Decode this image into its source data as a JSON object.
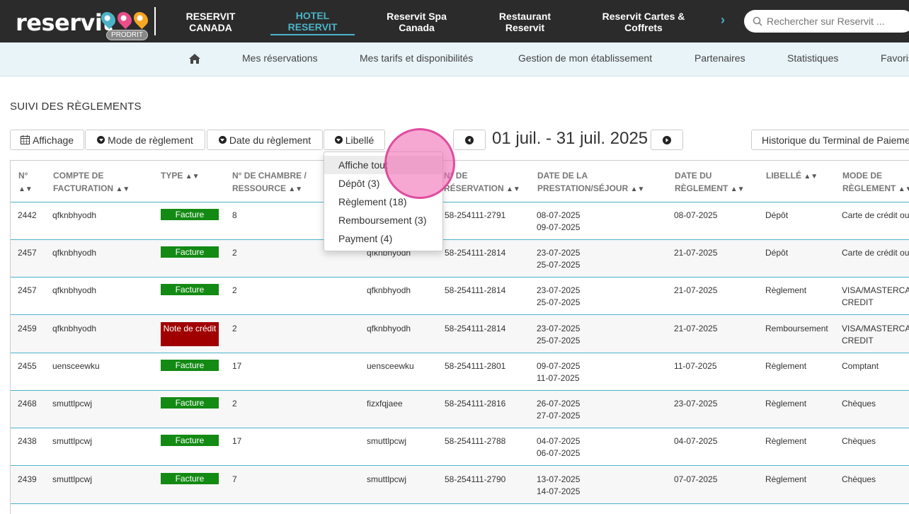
{
  "brand": {
    "logo_text": "reservit",
    "badge": "PRODRIT",
    "pin_colors": [
      "#4bb3c9",
      "#e94d8a",
      "#f5a623"
    ]
  },
  "topnav": {
    "items": [
      {
        "label": "RESERVIT CANADA"
      },
      {
        "label": "HOTEL RESERVIT"
      },
      {
        "label": "Reservit Spa Canada"
      },
      {
        "label": "Restaurant Reservit"
      },
      {
        "label": "Reservit Cartes & Coffrets"
      }
    ],
    "more_arrow": "›",
    "search_placeholder": "Rechercher sur Reservit ..."
  },
  "subnav": {
    "items": [
      {
        "label": "Mes réservations"
      },
      {
        "label": "Mes tarifs et disponibilités"
      },
      {
        "label": "Gestion de mon établissement"
      },
      {
        "label": "Partenaires"
      },
      {
        "label": "Statistiques"
      },
      {
        "label": "Favoris"
      }
    ]
  },
  "page": {
    "title": "SUIVI DES RÈGLEMENTS",
    "toolbar": {
      "display": "Affichage",
      "payment_mode": "Mode de règlement",
      "payment_date": "Date du règlement",
      "label": "Libellé",
      "date_range": "01 juil. - 31 juil. 2025",
      "history": "Historique du Terminal de Paiement"
    }
  },
  "dropdown": {
    "items": [
      "Affiche tout",
      "Dépôt (3)",
      "Règlement (18)",
      "Remboursement (3)",
      "Payment (4)"
    ]
  },
  "table": {
    "headers": {
      "num": "N°",
      "account": "COMPTE DE FACTURATION",
      "type": "TYPE",
      "room": "N° DE CHAMBRE / RESSOURCE",
      "resa": "N° DE RÉSERVATION",
      "prest": "DATE DE LA PRESTATION/SÉJOUR",
      "pay_date": "DATE DU RÈGLEMENT",
      "label": "LIBELLÉ",
      "mode": "MODE DE RÈGLEMENT"
    },
    "rows": [
      {
        "num": "2442",
        "account": "qfknbhyodh",
        "type": "Facture",
        "room": "8",
        "client": "",
        "resa": "58-254111-2791",
        "d1": "08-07-2025",
        "d2": "09-07-2025",
        "pay": "08-07-2025",
        "label": "Dépôt",
        "mode": "Carte de crédit ou",
        "mode2": ""
      },
      {
        "num": "2457",
        "account": "qfknbhyodh",
        "type": "Facture",
        "room": "2",
        "client": "qfknbhyodh",
        "resa": "58-254111-2814",
        "d1": "23-07-2025",
        "d2": "25-07-2025",
        "pay": "21-07-2025",
        "label": "Dépôt",
        "mode": "Carte de crédit ou",
        "mode2": ""
      },
      {
        "num": "2457",
        "account": "qfknbhyodh",
        "type": "Facture",
        "room": "2",
        "client": "qfknbhyodh",
        "resa": "58-254111-2814",
        "d1": "23-07-2025",
        "d2": "25-07-2025",
        "pay": "21-07-2025",
        "label": "Règlement",
        "mode": "VISA/MASTERCARD",
        "mode2": "CREDIT"
      },
      {
        "num": "2459",
        "account": "qfknbhyodh",
        "type": "Note de crédit",
        "room": "2",
        "client": "qfknbhyodh",
        "resa": "58-254111-2814",
        "d1": "23-07-2025",
        "d2": "25-07-2025",
        "pay": "21-07-2025",
        "label": "Remboursement",
        "mode": "VISA/MASTERCARD",
        "mode2": "CREDIT"
      },
      {
        "num": "2455",
        "account": "uensceewku",
        "type": "Facture",
        "room": "17",
        "client": "uensceewku",
        "resa": "58-254111-2801",
        "d1": "09-07-2025",
        "d2": "11-07-2025",
        "pay": "11-07-2025",
        "label": "Règlement",
        "mode": "Comptant",
        "mode2": ""
      },
      {
        "num": "2468",
        "account": "smuttlpcwj",
        "type": "Facture",
        "room": "2",
        "client": "fizxfqjaee",
        "resa": "58-254111-2816",
        "d1": "26-07-2025",
        "d2": "27-07-2025",
        "pay": "23-07-2025",
        "label": "Règlement",
        "mode": "Chèques",
        "mode2": ""
      },
      {
        "num": "2438",
        "account": "smuttlpcwj",
        "type": "Facture",
        "room": "17",
        "client": "smuttlpcwj",
        "resa": "58-254111-2788",
        "d1": "04-07-2025",
        "d2": "06-07-2025",
        "pay": "04-07-2025",
        "label": "Règlement",
        "mode": "Chèques",
        "mode2": ""
      },
      {
        "num": "2439",
        "account": "smuttlpcwj",
        "type": "Facture",
        "room": "7",
        "client": "smuttlpcwj",
        "resa": "58-254111-2790",
        "d1": "13-07-2025",
        "d2": "14-07-2025",
        "pay": "07-07-2025",
        "label": "Règlement",
        "mode": "Chèques",
        "mode2": ""
      }
    ]
  }
}
